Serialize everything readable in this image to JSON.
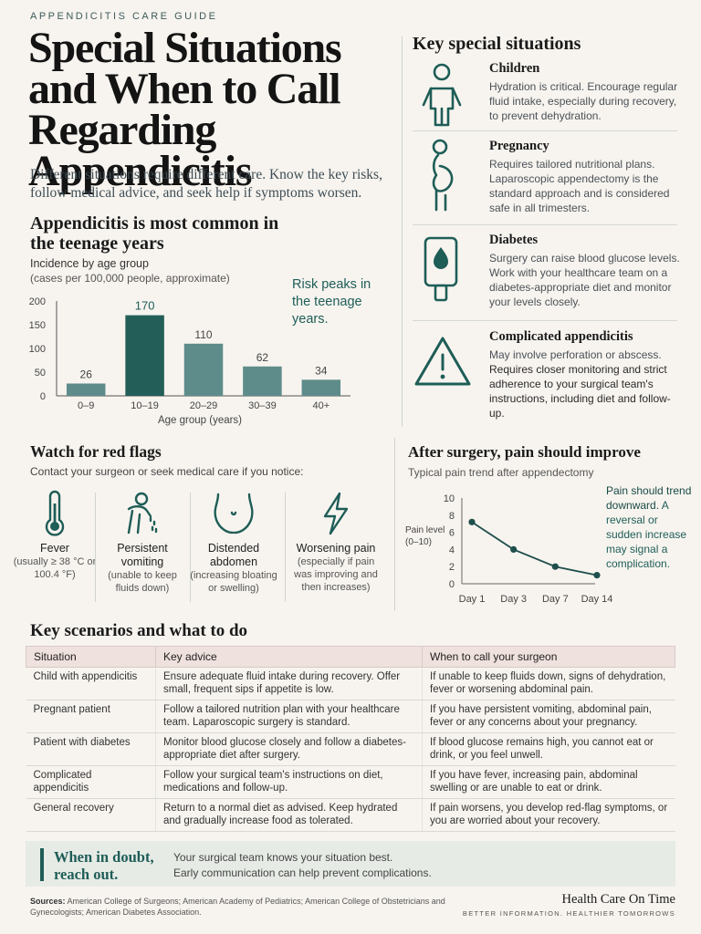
{
  "header": {
    "eyebrow": "APPENDICITIS CARE GUIDE",
    "title": "Special Situations and When to Call Regarding Appendicitis",
    "subtitle": "Different situations require different care. Know the key risks, follow medical advice, and seek help if symptoms worsen."
  },
  "incidence": {
    "title": "Appendicitis is most common in the teenage years",
    "subtitle": "Incidence by age group",
    "subtitle2": "(cases per 100,000 people, approximate)",
    "note": "Risk peaks in the teenage years."
  },
  "chart_data": [
    {
      "type": "bar",
      "title": "Incidence by age group",
      "ylabel": "",
      "xlabel": "Age group (years)",
      "categories": [
        "0–9",
        "10–19",
        "20–29",
        "30–39",
        "40+"
      ],
      "values": [
        26,
        170,
        110,
        62,
        34
      ],
      "ylim": [
        0,
        200
      ],
      "yticks": [
        0,
        50,
        100,
        150,
        200
      ],
      "highlight_index": 1,
      "colors": {
        "bar": "#5e8c8a",
        "highlight": "#245e59",
        "axis": "#555555",
        "grid": "#dddddd"
      }
    },
    {
      "type": "line",
      "title": "Typical pain trend after appendectomy",
      "ylabel": "Pain level (0–10)",
      "xlabel": "",
      "categories": [
        "Day 1",
        "Day 3",
        "Day 7",
        "Day 14"
      ],
      "values": [
        7.2,
        4,
        2,
        1
      ],
      "ylim": [
        0,
        10
      ],
      "yticks": [
        0,
        2,
        4,
        6,
        8,
        10
      ],
      "colors": {
        "line": "#1f4f4c"
      }
    }
  ],
  "situations": {
    "title": "Key special situations",
    "items": [
      {
        "name": "Children",
        "icon": "child-icon",
        "desc": "Hydration is critical. Encourage regular fluid intake, especially during recovery, to prevent dehydration."
      },
      {
        "name": "Pregnancy",
        "icon": "pregnant-woman-icon",
        "desc": "Requires tailored nutritional plans. Laparoscopic appendectomy is the standard approach and is considered safe in all trimesters."
      },
      {
        "name": "Diabetes",
        "icon": "glucose-meter-icon",
        "desc": "Surgery can raise blood glucose levels. Work with your healthcare team on a diabetes-appropriate diet and monitor your levels closely."
      },
      {
        "name": "Complicated appendicitis",
        "icon": "warning-icon",
        "desc": "May involve perforation or abscess.",
        "desc2": "Requires closer monitoring and strict adherence to your surgical team's instructions, including diet and follow-up."
      }
    ]
  },
  "red_flags": {
    "title": "Watch for red flags",
    "subtitle": "Contact your surgeon or seek medical care if you notice:",
    "items": [
      {
        "name": "Fever",
        "icon": "thermometer-icon",
        "desc": "(usually ≥ 38 °C or 100.4 °F)"
      },
      {
        "name": "Persistent vomiting",
        "icon": "vomiting-icon",
        "desc": "(unable to keep fluids down)"
      },
      {
        "name": "Distended abdomen",
        "icon": "abdomen-icon",
        "desc": "(increasing bloating or swelling)"
      },
      {
        "name": "Worsening pain",
        "icon": "lightning-icon",
        "desc": "(especially if pain was improving and then increases)"
      }
    ]
  },
  "pain": {
    "title": "After surgery, pain should improve",
    "subtitle": "Typical pain trend after appendectomy",
    "ylabel1": "Pain level",
    "ylabel2": "(0–10)",
    "note_strong": "Pain should trend downward.",
    "note_rest": "A reversal or sudden increase may signal a complication."
  },
  "table": {
    "title": "Key scenarios and what to do",
    "headers": [
      "Situation",
      "Key advice",
      "When to call your surgeon"
    ],
    "rows": [
      [
        "Child with appendicitis",
        "Ensure adequate fluid intake during recovery. Offer small, frequent sips if appetite is low.",
        "If unable to keep fluids down, signs of dehydration, fever or worsening abdominal pain."
      ],
      [
        "Pregnant patient",
        "Follow a tailored nutrition plan with your healthcare team. Laparoscopic surgery is standard.",
        "If you have persistent vomiting, abdominal pain, fever or any concerns about your pregnancy."
      ],
      [
        "Patient with diabetes",
        "Monitor blood glucose closely and follow a diabetes-appropriate diet after surgery.",
        "If blood glucose remains high, you cannot eat or drink, or you feel unwell."
      ],
      [
        "Complicated appendicitis",
        "Follow your surgical team's instructions on diet, medications and follow-up.",
        "If you have fever, increasing pain, abdominal swelling or are unable to eat or drink."
      ],
      [
        "General recovery",
        "Return to a normal diet as advised. Keep hydrated and gradually increase food as tolerated.",
        "If pain worsens, you develop red-flag symptoms, or you are worried about your recovery."
      ]
    ]
  },
  "callout": {
    "heading": "When in doubt, reach out.",
    "line1": "Your surgical team knows your situation best.",
    "line2": "Early communication can help prevent complications."
  },
  "footer": {
    "sources_label": "Sources:",
    "sources": "American College of Surgeons; American Academy of Pediatrics; American College of Obstetricians and Gynecologists; American Diabetes Association.",
    "brand": "Health Care On Time",
    "tagline": "BETTER INFORMATION. HEALTHIER TOMORROWS"
  }
}
